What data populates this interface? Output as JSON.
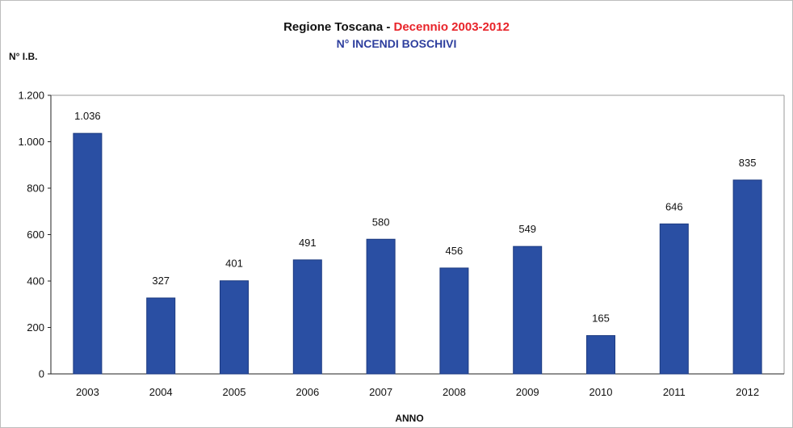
{
  "chart_data": {
    "type": "bar",
    "title": "Regione Toscana - ",
    "title_accent": "Decennio 2003-2012",
    "subtitle": "N° INCENDI BOSCHIVI",
    "ylabel": "N° I.B.",
    "xlabel": "ANNO",
    "categories": [
      "2003",
      "2004",
      "2005",
      "2006",
      "2007",
      "2008",
      "2009",
      "2010",
      "2011",
      "2012"
    ],
    "values": [
      1036,
      327,
      401,
      491,
      580,
      456,
      549,
      165,
      646,
      835
    ],
    "data_labels": [
      "1.036",
      "327",
      "401",
      "491",
      "580",
      "456",
      "549",
      "165",
      "646",
      "835"
    ],
    "ylim": [
      0,
      1200
    ],
    "yticks": [
      0,
      200,
      400,
      600,
      800,
      1000,
      1200
    ],
    "ytick_labels": [
      "0",
      "200",
      "400",
      "600",
      "800",
      "1.000",
      "1.200"
    ],
    "grid": false,
    "legend": "none",
    "colors": {
      "bar": "#2a4fa3",
      "bar_edge": "#1c3a80",
      "title_accent": "#e8242a",
      "subtitle": "#2e3f9e",
      "plot_border": "#9a9a9a"
    }
  }
}
